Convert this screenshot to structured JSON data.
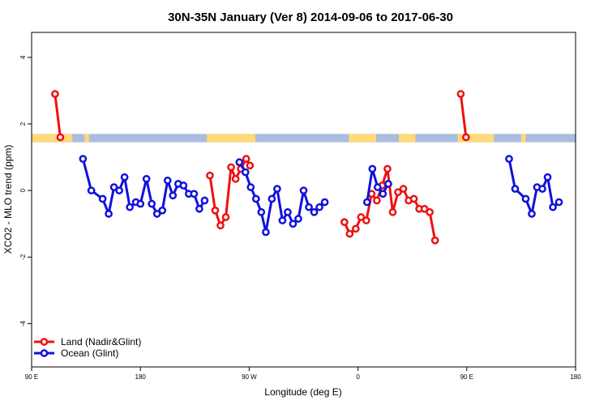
{
  "chart_data": {
    "type": "line",
    "title": "30N-35N January (Ver 8)   2014-09-06 to 2017-06-30",
    "xlabel": "Longitude (deg E)",
    "ylabel": "XCO2 - MLO trend (ppm)",
    "xlim": [
      90,
      450
    ],
    "ylim": [
      -5.3,
      4.75
    ],
    "x_ticks": [
      {
        "value": 90,
        "label": "90 E"
      },
      {
        "value": 162,
        "label": "180"
      },
      {
        "value": 234,
        "label": "90 W"
      },
      {
        "value": 306,
        "label": "0"
      },
      {
        "value": 378,
        "label": "90 E"
      },
      {
        "value": 450,
        "label": "180"
      }
    ],
    "y_ticks": [
      {
        "value": -4,
        "label": "-4"
      },
      {
        "value": -2,
        "label": "-2"
      },
      {
        "value": 0,
        "label": "0"
      },
      {
        "value": 2,
        "label": "2"
      },
      {
        "value": 4,
        "label": "4"
      }
    ],
    "land_ocean_band": {
      "y_range": [
        1.45,
        1.7
      ],
      "land_color": "#FFD97A",
      "ocean_color": "#A9BDDE",
      "land_segments": [
        [
          90,
          117
        ],
        [
          125,
          128
        ],
        [
          206,
          238
        ],
        [
          300,
          318
        ],
        [
          333,
          344
        ],
        [
          372,
          396
        ],
        [
          414,
          417
        ]
      ]
    },
    "series": [
      {
        "name": "Land (Nadir&Glint)",
        "color": "#EE1111",
        "segments": [
          [
            [
              105.5,
              2.9
            ],
            [
              109,
              1.6
            ]
          ],
          [
            [
              208,
              0.45
            ],
            [
              211.5,
              -0.6
            ],
            [
              215,
              -1.05
            ],
            [
              218.5,
              -0.8
            ],
            [
              222,
              0.7
            ],
            [
              225,
              0.35
            ],
            [
              228.5,
              0.65
            ],
            [
              232,
              0.95
            ],
            [
              234.5,
              0.75
            ]
          ],
          [
            [
              297,
              -0.95
            ],
            [
              300.5,
              -1.3
            ],
            [
              304.5,
              -1.15
            ],
            [
              308,
              -0.8
            ],
            [
              311.5,
              -0.9
            ],
            [
              315,
              -0.1
            ],
            [
              318.5,
              -0.3
            ],
            [
              322,
              0.15
            ],
            [
              325.5,
              0.65
            ],
            [
              329,
              -0.65
            ],
            [
              332.5,
              -0.05
            ],
            [
              336,
              0.05
            ],
            [
              339.5,
              -0.3
            ],
            [
              343,
              -0.25
            ],
            [
              346.5,
              -0.55
            ],
            [
              350,
              -0.55
            ],
            [
              353.5,
              -0.65
            ],
            [
              357,
              -1.5
            ]
          ],
          [
            [
              374,
              2.9
            ],
            [
              377.5,
              1.6
            ]
          ]
        ]
      },
      {
        "name": "Ocean (Glint)",
        "color": "#1111DD",
        "segments": [
          [
            [
              124,
              0.95
            ],
            [
              129.5,
              0.0
            ],
            [
              137,
              -0.25
            ],
            [
              141,
              -0.7
            ],
            [
              144.5,
              0.1
            ],
            [
              148,
              0.0
            ],
            [
              151.5,
              0.4
            ],
            [
              155,
              -0.5
            ],
            [
              159,
              -0.35
            ],
            [
              162,
              -0.4
            ],
            [
              166,
              0.35
            ],
            [
              169.5,
              -0.4
            ],
            [
              173,
              -0.7
            ],
            [
              176.5,
              -0.6
            ],
            [
              180,
              0.3
            ],
            [
              183.5,
              -0.15
            ],
            [
              187,
              0.2
            ],
            [
              190.5,
              0.15
            ],
            [
              194,
              -0.1
            ],
            [
              197.5,
              -0.1
            ],
            [
              201,
              -0.55
            ],
            [
              204.5,
              -0.3
            ]
          ],
          [
            [
              227.5,
              0.85
            ],
            [
              231.5,
              0.55
            ],
            [
              235,
              0.1
            ],
            [
              238.5,
              -0.25
            ],
            [
              242,
              -0.65
            ],
            [
              245,
              -1.25
            ],
            [
              249,
              -0.25
            ],
            [
              252.5,
              0.05
            ],
            [
              256,
              -0.9
            ],
            [
              259.5,
              -0.65
            ],
            [
              263,
              -1.0
            ],
            [
              266.5,
              -0.85
            ],
            [
              270,
              0.0
            ],
            [
              273.5,
              -0.5
            ],
            [
              277,
              -0.65
            ],
            [
              280.5,
              -0.5
            ],
            [
              284,
              -0.35
            ]
          ],
          [
            [
              312,
              -0.35
            ],
            [
              315.5,
              0.65
            ],
            [
              319,
              0.1
            ],
            [
              322.5,
              -0.1
            ],
            [
              326,
              0.2
            ]
          ],
          [
            [
              406,
              0.95
            ],
            [
              410,
              0.05
            ],
            [
              417,
              -0.25
            ],
            [
              421,
              -0.7
            ],
            [
              424.5,
              0.1
            ],
            [
              428,
              0.05
            ],
            [
              431.5,
              0.4
            ],
            [
              435,
              -0.5
            ],
            [
              439,
              -0.35
            ]
          ]
        ]
      }
    ],
    "legend": {
      "position": "bottom-left",
      "entries": [
        {
          "label": "Land (Nadir&Glint)",
          "color": "#EE1111"
        },
        {
          "label": "Ocean (Glint)",
          "color": "#1111DD"
        }
      ]
    }
  }
}
